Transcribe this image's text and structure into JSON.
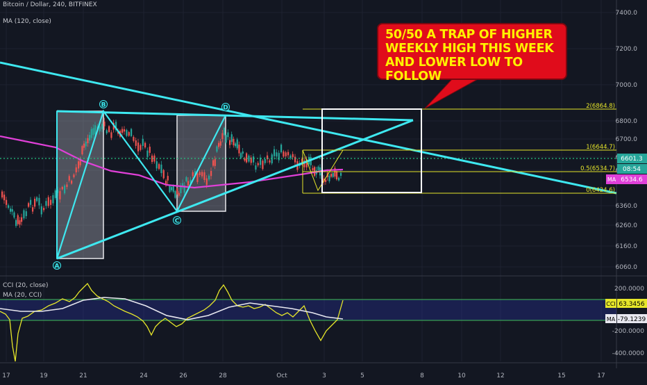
{
  "header": {
    "symbol": "Bitcoin / Dollar, 240, BITFINEX",
    "ma_label": "MA (120, close)",
    "cci_label": "CCI (20, close)",
    "cci_ma_label": "MA (20, CCI)"
  },
  "callout": {
    "lines": [
      "50/50 A TRAP OF HIGHER",
      "WEEKLY HIGH THIS WEEK",
      "AND LOWER LOW TO FOLLOW"
    ]
  },
  "colors": {
    "background": "#131722",
    "pattern": "#3ee8f0",
    "ma": "#e040d8",
    "fib": "#e6e62a",
    "callout_bg": "#e00c1b",
    "callout_text": "#fff200",
    "cci": "#e6e62a",
    "cci_ma": "#e8e8f0",
    "current_price": "#26a69a"
  },
  "chart_data": {
    "type": "candlestick",
    "price_axis": {
      "ticks": [
        "7400.0",
        "7200.0",
        "7000.0",
        "6800.0",
        "6700.0",
        "6600.0",
        "6460.0",
        "6360.0",
        "6260.0",
        "6160.0",
        "6060.0"
      ],
      "ylim": [
        6000,
        7500
      ]
    },
    "x_ticks": [
      "17",
      "19",
      "21",
      "24",
      "26",
      "28",
      "Oct",
      "3",
      "5",
      "8",
      "10",
      "12",
      "15",
      "17"
    ],
    "price_labels": {
      "current": "6601.3",
      "countdown": "08:54",
      "ma": "6534.6",
      "ma_tag": "MA"
    },
    "pattern_points": [
      "A",
      "B",
      "C",
      "D"
    ],
    "fib_levels": [
      {
        "label": "2(6864.8)"
      },
      {
        "label": "1(6644.7)"
      },
      {
        "label": "0.5(6534.7)"
      },
      {
        "label": "0(6424.6)"
      }
    ],
    "cci_panel": {
      "ticks": [
        "200.0000",
        "-200.0000",
        "-400.0000"
      ],
      "cci_label": "CCI",
      "cci_value": "63.3456",
      "ma_label": "MA",
      "ma_value": "-79.1239"
    }
  }
}
